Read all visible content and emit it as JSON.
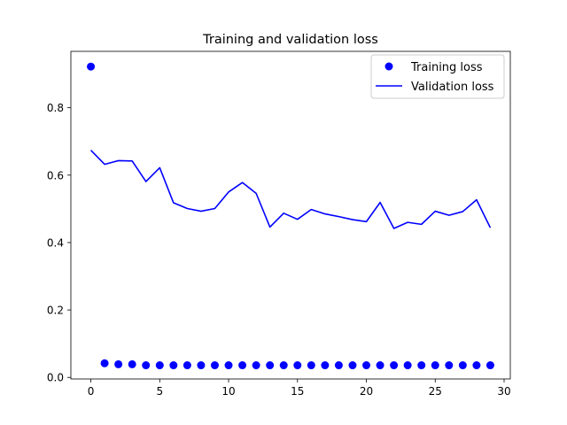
{
  "chart_data": {
    "type": "line",
    "title": "Training and validation loss",
    "xlabel": "",
    "ylabel": "",
    "xlim": [
      -1.45,
      30.45
    ],
    "ylim": [
      -0.0046,
      0.9672
    ],
    "xticks": [
      0,
      5,
      10,
      15,
      20,
      25,
      30
    ],
    "yticks": [
      0.0,
      0.2,
      0.4,
      0.6,
      0.8
    ],
    "ytick_labels": [
      "0.0",
      "0.2",
      "0.4",
      "0.6",
      "0.8"
    ],
    "grid": false,
    "legend_position": "top-right",
    "series": [
      {
        "name": "Training loss",
        "style": "points",
        "color": "#0000ff",
        "x": [
          0,
          1,
          2,
          3,
          4,
          5,
          6,
          7,
          8,
          9,
          10,
          11,
          12,
          13,
          14,
          15,
          16,
          17,
          18,
          19,
          20,
          21,
          22,
          23,
          24,
          25,
          26,
          27,
          28,
          29
        ],
        "values": [
          0.922,
          0.042,
          0.039,
          0.039,
          0.036,
          0.036,
          0.036,
          0.036,
          0.036,
          0.036,
          0.036,
          0.036,
          0.036,
          0.036,
          0.036,
          0.036,
          0.036,
          0.036,
          0.036,
          0.036,
          0.036,
          0.036,
          0.036,
          0.036,
          0.036,
          0.036,
          0.036,
          0.036,
          0.036,
          0.036
        ]
      },
      {
        "name": "Validation loss",
        "style": "line",
        "color": "#0000ff",
        "x": [
          0,
          1,
          2,
          3,
          4,
          5,
          6,
          7,
          8,
          9,
          10,
          11,
          12,
          13,
          14,
          15,
          16,
          17,
          18,
          19,
          20,
          21,
          22,
          23,
          24,
          25,
          26,
          27,
          28,
          29
        ],
        "values": [
          0.674,
          0.632,
          0.643,
          0.642,
          0.581,
          0.622,
          0.518,
          0.501,
          0.493,
          0.501,
          0.55,
          0.578,
          0.546,
          0.446,
          0.487,
          0.469,
          0.498,
          0.485,
          0.477,
          0.468,
          0.462,
          0.519,
          0.442,
          0.46,
          0.454,
          0.493,
          0.481,
          0.492,
          0.527,
          0.444
        ]
      }
    ]
  }
}
